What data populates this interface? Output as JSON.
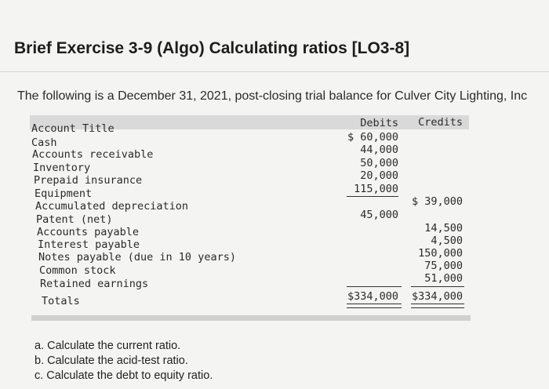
{
  "header": {
    "title": "Brief Exercise 3-9 (Algo) Calculating ratios [LO3-8]"
  },
  "intro": "The following is a December 31, 2021, post-closing trial balance for Culver City Lighting, Inc",
  "table": {
    "headers": {
      "account": "Account Title",
      "debits": "Debits",
      "credits": "Credits"
    },
    "rows": [
      {
        "account": "Cash",
        "debit": "$ 60,000",
        "credit": ""
      },
      {
        "account": "Accounts receivable",
        "debit": "44,000",
        "credit": ""
      },
      {
        "account": "Inventory",
        "debit": "50,000",
        "credit": ""
      },
      {
        "account": "Prepaid insurance",
        "debit": "20,000",
        "credit": ""
      },
      {
        "account": "Equipment",
        "debit": "115,000",
        "credit": ""
      },
      {
        "account": "Accumulated depreciation",
        "debit": "",
        "credit": "$ 39,000"
      },
      {
        "account": "Patent (net)",
        "debit": "45,000",
        "credit": ""
      },
      {
        "account": "Accounts payable",
        "debit": "",
        "credit": "14,500"
      },
      {
        "account": "Interest payable",
        "debit": "",
        "credit": "4,500"
      },
      {
        "account": "Notes payable (due in 10 years)",
        "debit": "",
        "credit": "150,000"
      },
      {
        "account": "Common stock",
        "debit": "",
        "credit": "75,000"
      },
      {
        "account": "Retained earnings",
        "debit": "",
        "credit": "51,000"
      }
    ],
    "totals": {
      "label": "Totals",
      "debit": "$334,000",
      "credit": "$334,000"
    }
  },
  "questions": [
    "a. Calculate the current ratio.",
    "b. Calculate the acid-test ratio.",
    "c. Calculate the debt to equity ratio."
  ]
}
